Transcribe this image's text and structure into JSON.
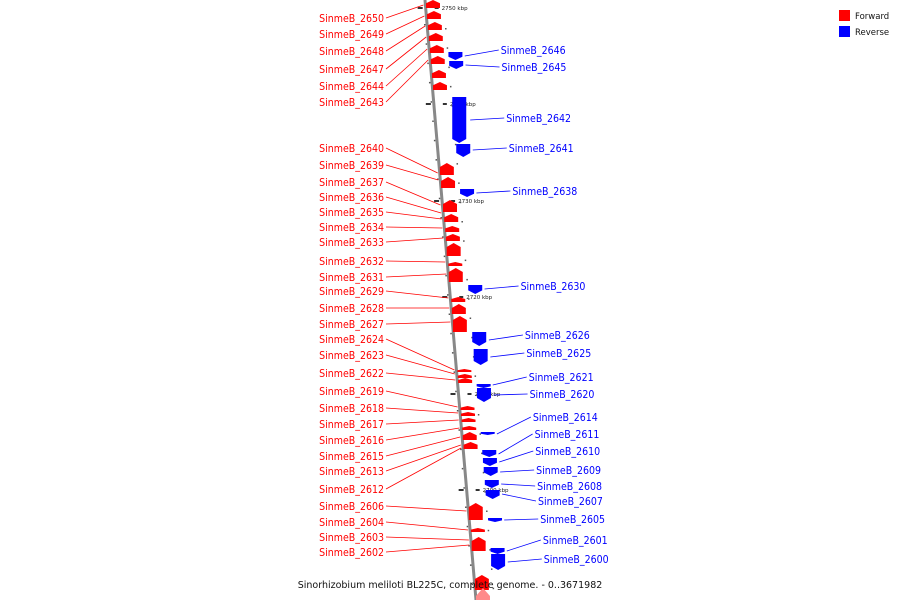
{
  "caption": "Sinorhizobium meliloti BL225C, complete genome. - 0..3671982",
  "legend": [
    {
      "label": "Forward",
      "color": "#ff0000"
    },
    {
      "label": "Reverse",
      "color": "#0000ff"
    }
  ],
  "colors": {
    "forward": "#ff0000",
    "forward_light": "#ff8a8a",
    "reverse": "#0000ff",
    "backbone": "#888888"
  },
  "ticks": [
    "2750 kbp",
    "2740 kbp",
    "2730 kbp",
    "2720 kbp",
    "2710 kbp",
    "2700 kbp"
  ],
  "forward_genes": [
    "SinmeB_2650",
    "SinmeB_2649",
    "SinmeB_2648",
    "SinmeB_2647",
    "SinmeB_2644",
    "SinmeB_2643",
    "SinmeB_2640",
    "SinmeB_2639",
    "SinmeB_2637",
    "SinmeB_2636",
    "SinmeB_2635",
    "SinmeB_2634",
    "SinmeB_2633",
    "SinmeB_2632",
    "SinmeB_2631",
    "SinmeB_2629",
    "SinmeB_2628",
    "SinmeB_2627",
    "SinmeB_2624",
    "SinmeB_2623",
    "SinmeB_2622",
    "SinmeB_2619",
    "SinmeB_2618",
    "SinmeB_2617",
    "SinmeB_2616",
    "SinmeB_2615",
    "SinmeB_2613",
    "SinmeB_2612",
    "SinmeB_2606",
    "SinmeB_2604",
    "SinmeB_2603",
    "SinmeB_2602"
  ],
  "reverse_genes": [
    "SinmeB_2646",
    "SinmeB_2645",
    "SinmeB_2642",
    "SinmeB_2641",
    "SinmeB_2638",
    "SinmeB_2630",
    "SinmeB_2626",
    "SinmeB_2625",
    "SinmeB_2621",
    "SinmeB_2620",
    "SinmeB_2614",
    "SinmeB_2611",
    "SinmeB_2610",
    "SinmeB_2609",
    "SinmeB_2608",
    "SinmeB_2607",
    "SinmeB_2605",
    "SinmeB_2601",
    "SinmeB_2600"
  ]
}
